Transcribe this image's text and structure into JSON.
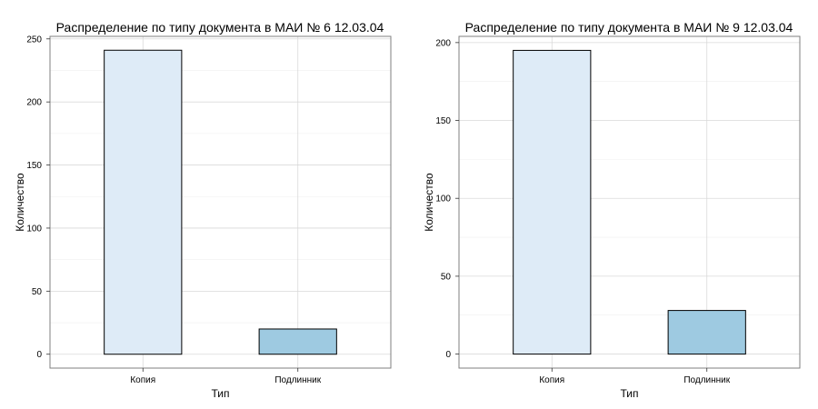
{
  "chart_data": [
    {
      "type": "bar",
      "title": "Распределение по типу документа в МАИ № 6 12.03.04",
      "xlabel": "Тип",
      "ylabel": "Количество",
      "categories": [
        "Копия",
        "Подлинник"
      ],
      "values": [
        241,
        20
      ],
      "ylim": [
        -11,
        252
      ],
      "yticks": [
        0,
        50,
        100,
        150,
        200,
        250
      ],
      "grid": true,
      "legend": "none",
      "bar_colors": [
        "#deebf7",
        "#9ecae1"
      ]
    },
    {
      "type": "bar",
      "title": "Распределение по типу документа в МАИ № 9 12.03.04",
      "xlabel": "Тип",
      "ylabel": "Количество",
      "categories": [
        "Копия",
        "Подлинник"
      ],
      "values": [
        195,
        28
      ],
      "ylim": [
        -9,
        204
      ],
      "yticks": [
        0,
        50,
        100,
        150,
        200
      ],
      "grid": true,
      "legend": "none",
      "bar_colors": [
        "#deebf7",
        "#9ecae1"
      ]
    }
  ],
  "style": {
    "grid_major": "#d9d9d9",
    "grid_minor": "#efefef",
    "panel_border": "#7f7f7f",
    "bar_stroke": "#000000"
  }
}
